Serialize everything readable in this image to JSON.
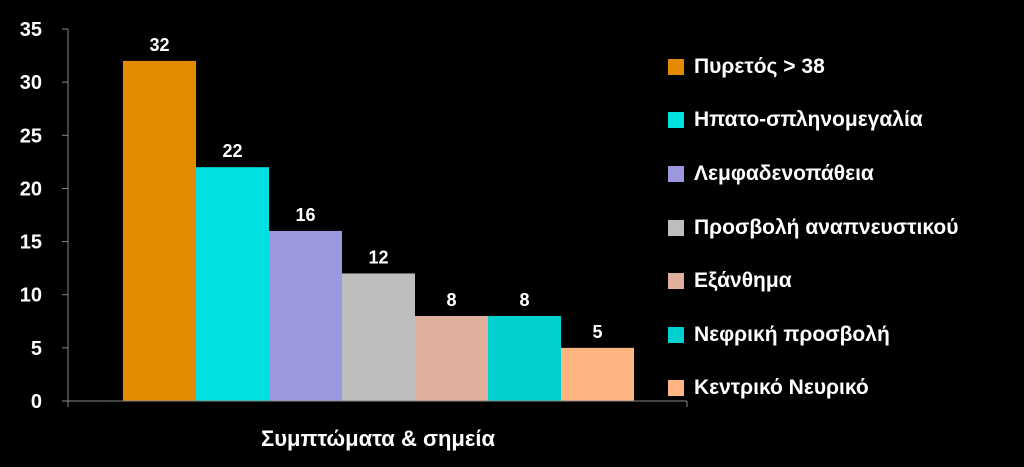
{
  "chart_data": {
    "type": "bar",
    "xlabel": "Συμπτώματα & σημεία",
    "ylim": [
      0,
      35
    ],
    "yticks": [
      0,
      5,
      10,
      15,
      20,
      25,
      30,
      35
    ],
    "grid": false,
    "legend_position": "right",
    "series": [
      {
        "name": "Πυρετός > 38",
        "value": 32,
        "color": "#E38A00"
      },
      {
        "name": "Ηπατο-σπληνομεγαλία",
        "value": 22,
        "color": "#00E0E0"
      },
      {
        "name": "Λεμφαδενοπάθεια",
        "value": 16,
        "color": "#9B98E0"
      },
      {
        "name": "Προσβολή αναπνευστικού",
        "value": 12,
        "color": "#BEBEBE"
      },
      {
        "name": "Εξάνθημα",
        "value": 8,
        "color": "#E0B09C"
      },
      {
        "name": "Νεφρική προσβολή",
        "value": 8,
        "color": "#00D0D0"
      },
      {
        "name": "Κεντρικό Νευρικό",
        "value": 5,
        "color": "#FFB482"
      }
    ]
  }
}
